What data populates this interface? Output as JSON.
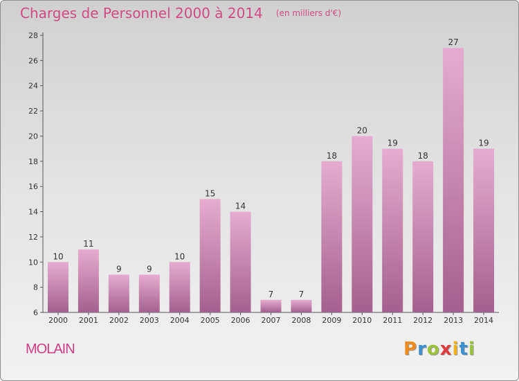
{
  "header": {
    "title": "Charges de Personnel 2000 à 2014",
    "subtitle": "(en milliers d'€)"
  },
  "footer": {
    "commune": "MOLAIN",
    "brand": "Proxiti",
    "brand_letters": [
      {
        "char": "P",
        "color": "#f08a1c"
      },
      {
        "char": "r",
        "color": "#3c8fd0"
      },
      {
        "char": "o",
        "color": "#9bc33a"
      },
      {
        "char": "x",
        "color": "#e23a3a"
      },
      {
        "char": "i",
        "color": "#f0b41c"
      },
      {
        "char": "t",
        "color": "#3c8fd0"
      },
      {
        "char": "i",
        "color": "#9bc33a"
      }
    ]
  },
  "colors": {
    "bar_top": "#e6acd0",
    "bar_bottom": "#a4608e",
    "title": "#d24a83",
    "axis": "#555555"
  },
  "chart_data": {
    "type": "bar",
    "title": "Charges de Personnel 2000 à 2014",
    "subtitle": "(en milliers d'€)",
    "xlabel": "",
    "ylabel": "",
    "categories": [
      "2000",
      "2001",
      "2002",
      "2003",
      "2004",
      "2005",
      "2006",
      "2007",
      "2008",
      "2009",
      "2010",
      "2011",
      "2012",
      "2013",
      "2014"
    ],
    "values": [
      10,
      11,
      9,
      9,
      10,
      15,
      14,
      7,
      7,
      18,
      20,
      19,
      18,
      27,
      19
    ],
    "ylim": [
      6,
      28
    ],
    "yticks": [
      6,
      8,
      10,
      12,
      14,
      16,
      18,
      20,
      22,
      24,
      26,
      28
    ],
    "grid": false,
    "legend": "none",
    "data_labels": true
  }
}
